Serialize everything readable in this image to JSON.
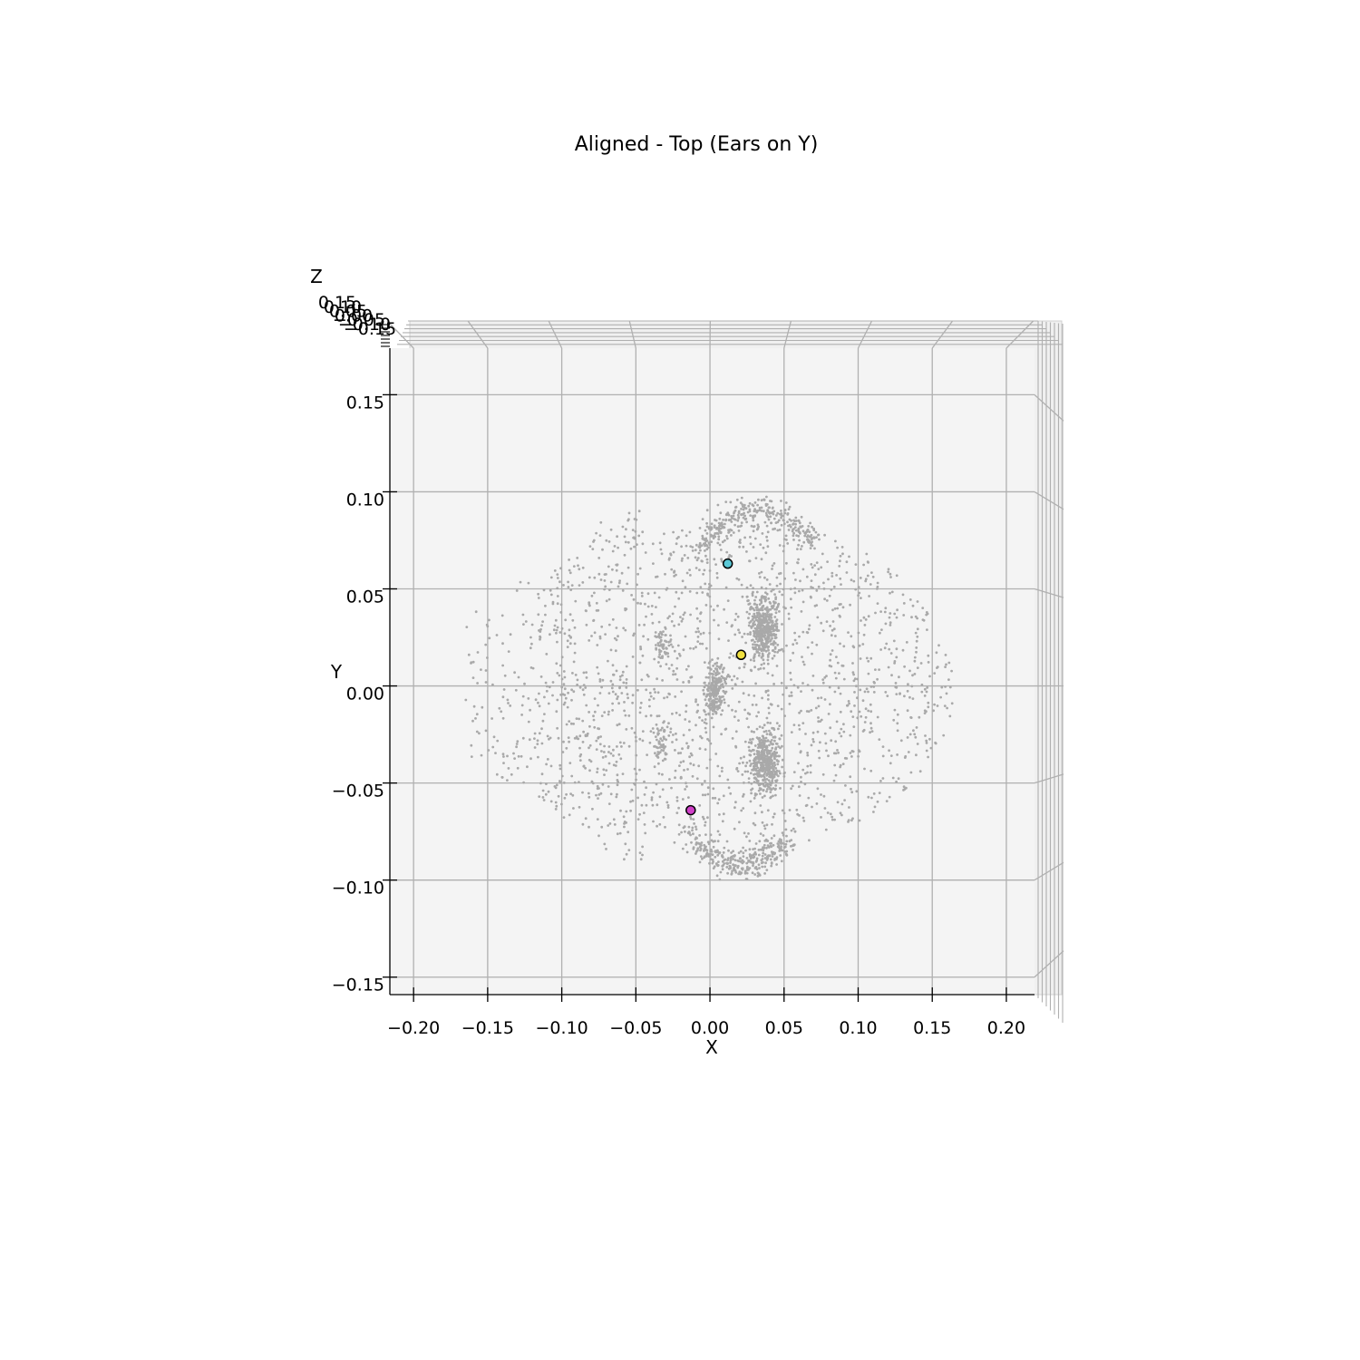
{
  "chart_data": {
    "type": "scatter",
    "title": "Aligned - Top (Ears on Y)",
    "view": "3d-top",
    "xlabel": "X",
    "ylabel": "Y",
    "zlabel": "Z",
    "xlim": [
      -0.216,
      0.219
    ],
    "ylim": [
      -0.159,
      0.174
    ],
    "xticks": [
      "−0.20",
      "−0.15",
      "−0.10",
      "−0.05",
      "0.00",
      "0.05",
      "0.10",
      "0.15",
      "0.20"
    ],
    "xtick_values": [
      -0.2,
      -0.15,
      -0.1,
      -0.05,
      0.0,
      0.05,
      0.1,
      0.15,
      0.2
    ],
    "yticks": [
      "0.15",
      "0.10",
      "0.05",
      "0.00",
      "−0.05",
      "−0.10",
      "−0.15"
    ],
    "ytick_values": [
      0.15,
      0.1,
      0.05,
      0.0,
      -0.05,
      -0.1,
      -0.15
    ],
    "zticks": [
      "0.15",
      "0.10",
      "0.05",
      "0.00",
      "−0.05",
      "−0.10",
      "−0.15"
    ],
    "grid": true,
    "point_cloud_color": "#a9a9a9",
    "pane_color": "#f4f4f4",
    "grid_color": "#b0b0b0",
    "landmarks": [
      {
        "x": 0.012,
        "y": 0.063,
        "color": "#5bc8d6"
      },
      {
        "x": 0.021,
        "y": 0.016,
        "color": "#f0e040"
      },
      {
        "x": -0.013,
        "y": -0.064,
        "color": "#d040c8"
      }
    ]
  }
}
